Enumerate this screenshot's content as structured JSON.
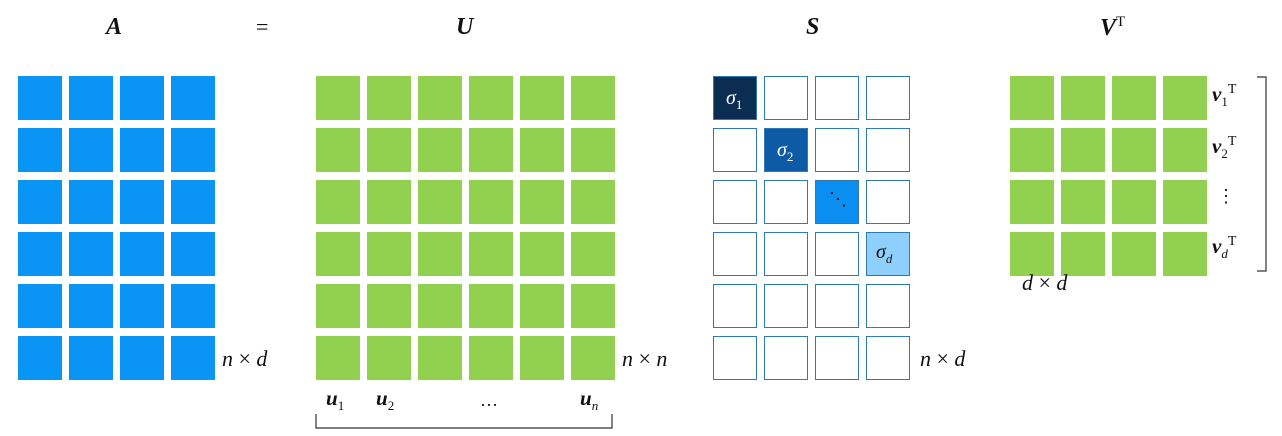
{
  "colors": {
    "a_fill": "#0a95f5",
    "green_fill": "#92d14f",
    "outline": "#2f79b7",
    "sigma1": "#0b2d52",
    "sigma2": "#0d5ba6",
    "sigma_dots": "#0a8ff0",
    "sigmad": "#8ed0fb"
  },
  "titles": {
    "a": "A",
    "equals": "=",
    "u": "U",
    "s": "S",
    "v": "V",
    "v_sup": "T"
  },
  "dims": {
    "a": {
      "left": "n",
      "op": "×",
      "right": "d"
    },
    "u": {
      "left": "n",
      "op": "×",
      "right": "n"
    },
    "s": {
      "left": "n",
      "op": "×",
      "right": "d"
    },
    "v": {
      "left": "d",
      "op": "×",
      "right": "d"
    }
  },
  "u_columns": {
    "u1": {
      "base": "u",
      "sub": "1"
    },
    "u2": {
      "base": "u",
      "sub": "2"
    },
    "dots": "…",
    "un": {
      "base": "u",
      "sub": "n"
    }
  },
  "v_rows": {
    "v1": {
      "base": "v",
      "sub": "1",
      "sup": "T"
    },
    "v2": {
      "base": "v",
      "sub": "2",
      "sup": "T"
    },
    "dots": "⋮",
    "vd": {
      "base": "v",
      "sub": "d",
      "sup": "T"
    }
  },
  "sigmas": {
    "s1": {
      "base": "σ",
      "sub": "1"
    },
    "s2": {
      "base": "σ",
      "sub": "2"
    },
    "dots": "⋱",
    "sd": {
      "base": "σ",
      "sub": "d"
    }
  }
}
